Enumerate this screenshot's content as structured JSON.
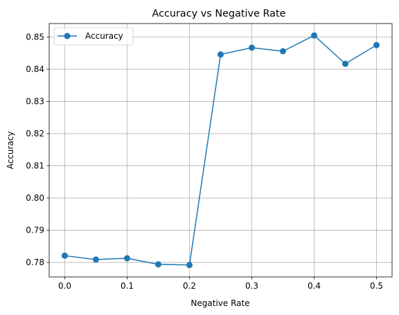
{
  "chart_data": {
    "type": "line",
    "title": "Accuracy vs Negative Rate",
    "xlabel": "Negative Rate",
    "ylabel": "Accuracy",
    "x": [
      0.0,
      0.05,
      0.1,
      0.15,
      0.2,
      0.25,
      0.3,
      0.35,
      0.4,
      0.45,
      0.5
    ],
    "series": [
      {
        "name": "Accuracy",
        "values": [
          0.7821,
          0.7809,
          0.7813,
          0.7794,
          0.7792,
          0.8446,
          0.8467,
          0.8456,
          0.8505,
          0.8417,
          0.8475
        ],
        "color": "#1f77b4",
        "marker": "circle"
      }
    ],
    "xlim": [
      -0.025,
      0.525
    ],
    "ylim": [
      0.7755,
      0.8542
    ],
    "x_ticks": [
      0.0,
      0.1,
      0.2,
      0.3,
      0.4,
      0.5
    ],
    "x_tick_labels": [
      "0.0",
      "0.1",
      "0.2",
      "0.3",
      "0.4",
      "0.5"
    ],
    "y_ticks": [
      0.78,
      0.79,
      0.8,
      0.81,
      0.82,
      0.83,
      0.84,
      0.85
    ],
    "y_tick_labels": [
      "0.78",
      "0.79",
      "0.80",
      "0.81",
      "0.82",
      "0.83",
      "0.84",
      "0.85"
    ],
    "grid": true,
    "legend_position": "upper-left"
  }
}
